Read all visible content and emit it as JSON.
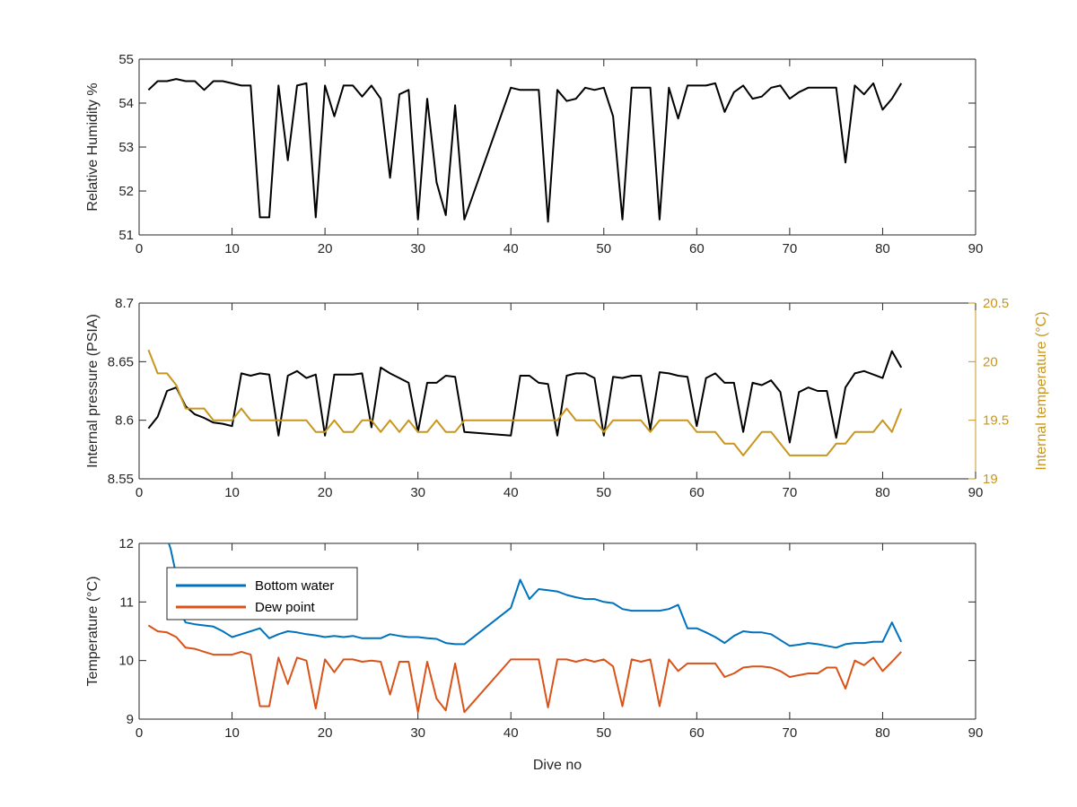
{
  "chart_data": [
    {
      "type": "line",
      "xlabel": "",
      "ylabel": "Relative Humidity %",
      "xlim": [
        0,
        90
      ],
      "ylim": [
        51,
        55
      ],
      "xticks": [
        "0",
        "10",
        "20",
        "30",
        "40",
        "50",
        "60",
        "70",
        "80",
        "90"
      ],
      "yticks": [
        "51",
        "52",
        "53",
        "54",
        "55"
      ],
      "grid": false,
      "series": [
        {
          "color": "#000000",
          "x": [
            1,
            2,
            3,
            4,
            5,
            6,
            7,
            8,
            9,
            10,
            11,
            12,
            13,
            14,
            15,
            16,
            17,
            18,
            19,
            20,
            21,
            22,
            23,
            24,
            25,
            26,
            27,
            28,
            29,
            30,
            31,
            32,
            33,
            34,
            35,
            40,
            41,
            42,
            43,
            44,
            45,
            46,
            47,
            48,
            49,
            50,
            51,
            52,
            53,
            54,
            55,
            56,
            57,
            58,
            59,
            60,
            61,
            62,
            63,
            64,
            65,
            66,
            67,
            68,
            69,
            70,
            71,
            72,
            73,
            74,
            75,
            76,
            77,
            78,
            79,
            80,
            81,
            82
          ],
          "values": [
            54.3,
            54.5,
            54.5,
            54.55,
            54.5,
            54.5,
            54.3,
            54.5,
            54.5,
            54.45,
            54.4,
            54.4,
            51.4,
            51.4,
            54.4,
            52.7,
            54.4,
            54.45,
            51.4,
            54.4,
            53.7,
            54.4,
            54.4,
            54.15,
            54.4,
            54.1,
            52.3,
            54.2,
            54.3,
            51.35,
            54.1,
            52.2,
            51.45,
            53.95,
            51.35,
            54.35,
            54.3,
            54.3,
            54.3,
            51.3,
            54.3,
            54.05,
            54.1,
            54.35,
            54.3,
            54.35,
            53.7,
            51.35,
            54.35,
            54.35,
            54.35,
            51.35,
            54.35,
            53.65,
            54.4,
            54.4,
            54.4,
            54.45,
            53.8,
            54.25,
            54.4,
            54.1,
            54.15,
            54.35,
            54.4,
            54.1,
            54.25,
            54.35,
            54.35,
            54.35,
            54.35,
            52.65,
            54.4,
            54.2,
            54.45,
            53.85,
            54.1,
            54.45
          ]
        }
      ]
    },
    {
      "type": "line",
      "xlabel": "",
      "ylabel": "Internal pressure (PSIA)",
      "y2label": "Internal temperature (°C)",
      "xlim": [
        0,
        90
      ],
      "ylim": [
        8.55,
        8.7
      ],
      "y2lim": [
        19,
        20.5
      ],
      "xticks": [
        "0",
        "10",
        "20",
        "30",
        "40",
        "50",
        "60",
        "70",
        "80",
        "90"
      ],
      "yticks": [
        "8.55",
        "8.6",
        "8.65",
        "8.7"
      ],
      "y2ticks": [
        "19",
        "19.5",
        "20",
        "20.5"
      ],
      "grid": false,
      "series": [
        {
          "axis": "left",
          "color": "#000000",
          "x": [
            1,
            2,
            3,
            4,
            5,
            6,
            7,
            8,
            9,
            10,
            11,
            12,
            13,
            14,
            15,
            16,
            17,
            18,
            19,
            20,
            21,
            22,
            23,
            24,
            25,
            26,
            27,
            28,
            29,
            30,
            31,
            32,
            33,
            34,
            35,
            40,
            41,
            42,
            43,
            44,
            45,
            46,
            47,
            48,
            49,
            50,
            51,
            52,
            53,
            54,
            55,
            56,
            57,
            58,
            59,
            60,
            61,
            62,
            63,
            64,
            65,
            66,
            67,
            68,
            69,
            70,
            71,
            72,
            73,
            74,
            75,
            76,
            77,
            78,
            79,
            80,
            81,
            82
          ],
          "values": [
            8.593,
            8.603,
            8.625,
            8.628,
            8.612,
            8.605,
            8.602,
            8.598,
            8.597,
            8.595,
            8.64,
            8.638,
            8.64,
            8.639,
            8.587,
            8.638,
            8.642,
            8.636,
            8.639,
            8.587,
            8.639,
            8.639,
            8.639,
            8.64,
            8.594,
            8.645,
            8.64,
            8.636,
            8.632,
            8.59,
            8.632,
            8.632,
            8.638,
            8.637,
            8.59,
            8.587,
            8.638,
            8.638,
            8.632,
            8.631,
            8.587,
            8.638,
            8.64,
            8.64,
            8.636,
            8.587,
            8.637,
            8.636,
            8.638,
            8.638,
            8.592,
            8.641,
            8.64,
            8.638,
            8.637,
            8.595,
            8.636,
            8.64,
            8.632,
            8.632,
            8.59,
            8.632,
            8.63,
            8.634,
            8.624,
            8.581,
            8.624,
            8.628,
            8.625,
            8.625,
            8.585,
            8.628,
            8.64,
            8.642,
            8.639,
            8.636,
            8.659,
            8.645
          ]
        },
        {
          "axis": "right",
          "color": "#c8961e",
          "x": [
            1,
            2,
            3,
            4,
            5,
            6,
            7,
            8,
            9,
            10,
            11,
            12,
            13,
            14,
            15,
            16,
            17,
            18,
            19,
            20,
            21,
            22,
            23,
            24,
            25,
            26,
            27,
            28,
            29,
            30,
            31,
            32,
            33,
            34,
            35,
            40,
            41,
            42,
            43,
            44,
            45,
            46,
            47,
            48,
            49,
            50,
            51,
            52,
            53,
            54,
            55,
            56,
            57,
            58,
            59,
            60,
            61,
            62,
            63,
            64,
            65,
            66,
            67,
            68,
            69,
            70,
            71,
            72,
            73,
            74,
            75,
            76,
            77,
            78,
            79,
            80,
            81,
            82
          ],
          "values": [
            20.1,
            19.9,
            19.9,
            19.8,
            19.6,
            19.6,
            19.6,
            19.5,
            19.5,
            19.5,
            19.6,
            19.5,
            19.5,
            19.5,
            19.5,
            19.5,
            19.5,
            19.5,
            19.4,
            19.4,
            19.5,
            19.4,
            19.4,
            19.5,
            19.5,
            19.4,
            19.5,
            19.4,
            19.5,
            19.4,
            19.4,
            19.5,
            19.4,
            19.4,
            19.5,
            19.5,
            19.5,
            19.5,
            19.5,
            19.5,
            19.5,
            19.6,
            19.5,
            19.5,
            19.5,
            19.4,
            19.5,
            19.5,
            19.5,
            19.5,
            19.4,
            19.5,
            19.5,
            19.5,
            19.5,
            19.4,
            19.4,
            19.4,
            19.3,
            19.3,
            19.2,
            19.3,
            19.4,
            19.4,
            19.3,
            19.2,
            19.2,
            19.2,
            19.2,
            19.2,
            19.3,
            19.3,
            19.4,
            19.4,
            19.4,
            19.5,
            19.4,
            19.6
          ]
        }
      ]
    },
    {
      "type": "line",
      "xlabel": "Dive no",
      "ylabel": "Temperature (°C)",
      "xlim": [
        0,
        90
      ],
      "ylim": [
        9,
        12
      ],
      "xticks": [
        "0",
        "10",
        "20",
        "30",
        "40",
        "50",
        "60",
        "70",
        "80",
        "90"
      ],
      "yticks": [
        "9",
        "10",
        "11",
        "12"
      ],
      "grid": false,
      "legend_position": "top-left",
      "series": [
        {
          "name": "Bottom water",
          "color": "#0072bd",
          "x": [
            3.2,
            3.4,
            3.6,
            3.8,
            4,
            4.5,
            5,
            6,
            7,
            8,
            9,
            10,
            11,
            12,
            13,
            14,
            15,
            16,
            17,
            18,
            19,
            20,
            21,
            22,
            23,
            24,
            25,
            26,
            27,
            28,
            29,
            30,
            31,
            32,
            33,
            34,
            35,
            40,
            41,
            42,
            43,
            44,
            45,
            46,
            47,
            48,
            49,
            50,
            51,
            52,
            53,
            54,
            55,
            56,
            57,
            58,
            59,
            60,
            61,
            62,
            63,
            64,
            65,
            66,
            67,
            68,
            69,
            70,
            71,
            72,
            73,
            74,
            75,
            76,
            77,
            78,
            79,
            80,
            81,
            82
          ],
          "values": [
            12.0,
            11.9,
            11.75,
            11.6,
            11.3,
            10.8,
            10.65,
            10.62,
            10.6,
            10.58,
            10.5,
            10.4,
            10.45,
            10.5,
            10.55,
            10.38,
            10.45,
            10.5,
            10.48,
            10.45,
            10.43,
            10.4,
            10.42,
            10.4,
            10.42,
            10.38,
            10.38,
            10.38,
            10.45,
            10.42,
            10.4,
            10.4,
            10.38,
            10.37,
            10.3,
            10.28,
            10.28,
            10.9,
            11.38,
            11.05,
            11.22,
            11.2,
            11.18,
            11.12,
            11.08,
            11.05,
            11.05,
            11.0,
            10.98,
            10.88,
            10.85,
            10.85,
            10.85,
            10.85,
            10.88,
            10.95,
            10.55,
            10.55,
            10.48,
            10.4,
            10.3,
            10.42,
            10.5,
            10.48,
            10.48,
            10.45,
            10.35,
            10.25,
            10.27,
            10.3,
            10.28,
            10.25,
            10.22,
            10.28,
            10.3,
            10.3,
            10.32,
            10.32,
            10.65,
            10.32
          ]
        },
        {
          "name": "Dew point",
          "color": "#d95319",
          "x": [
            1,
            2,
            3,
            4,
            5,
            6,
            7,
            8,
            9,
            10,
            11,
            12,
            13,
            14,
            15,
            16,
            17,
            18,
            19,
            20,
            21,
            22,
            23,
            24,
            25,
            26,
            27,
            28,
            29,
            30,
            31,
            32,
            33,
            34,
            35,
            40,
            41,
            42,
            43,
            44,
            45,
            46,
            47,
            48,
            49,
            50,
            51,
            52,
            53,
            54,
            55,
            56,
            57,
            58,
            59,
            60,
            61,
            62,
            63,
            64,
            65,
            66,
            67,
            68,
            69,
            70,
            71,
            72,
            73,
            74,
            75,
            76,
            77,
            78,
            79,
            80,
            81,
            82
          ],
          "values": [
            10.6,
            10.5,
            10.48,
            10.4,
            10.22,
            10.2,
            10.15,
            10.1,
            10.1,
            10.1,
            10.15,
            10.1,
            9.22,
            9.22,
            10.05,
            9.6,
            10.05,
            10.0,
            9.18,
            10.02,
            9.8,
            10.02,
            10.02,
            9.98,
            10.0,
            9.98,
            9.42,
            9.98,
            9.98,
            9.12,
            9.98,
            9.35,
            9.15,
            9.95,
            9.12,
            10.02,
            10.02,
            10.02,
            10.02,
            9.2,
            10.02,
            10.02,
            9.98,
            10.02,
            9.98,
            10.02,
            9.9,
            9.22,
            10.02,
            9.98,
            10.02,
            9.22,
            10.02,
            9.82,
            9.95,
            9.95,
            9.95,
            9.95,
            9.72,
            9.78,
            9.88,
            9.9,
            9.9,
            9.88,
            9.82,
            9.72,
            9.75,
            9.78,
            9.78,
            9.88,
            9.88,
            9.52,
            10.0,
            9.92,
            10.05,
            9.82,
            9.98,
            10.15
          ]
        }
      ]
    }
  ]
}
